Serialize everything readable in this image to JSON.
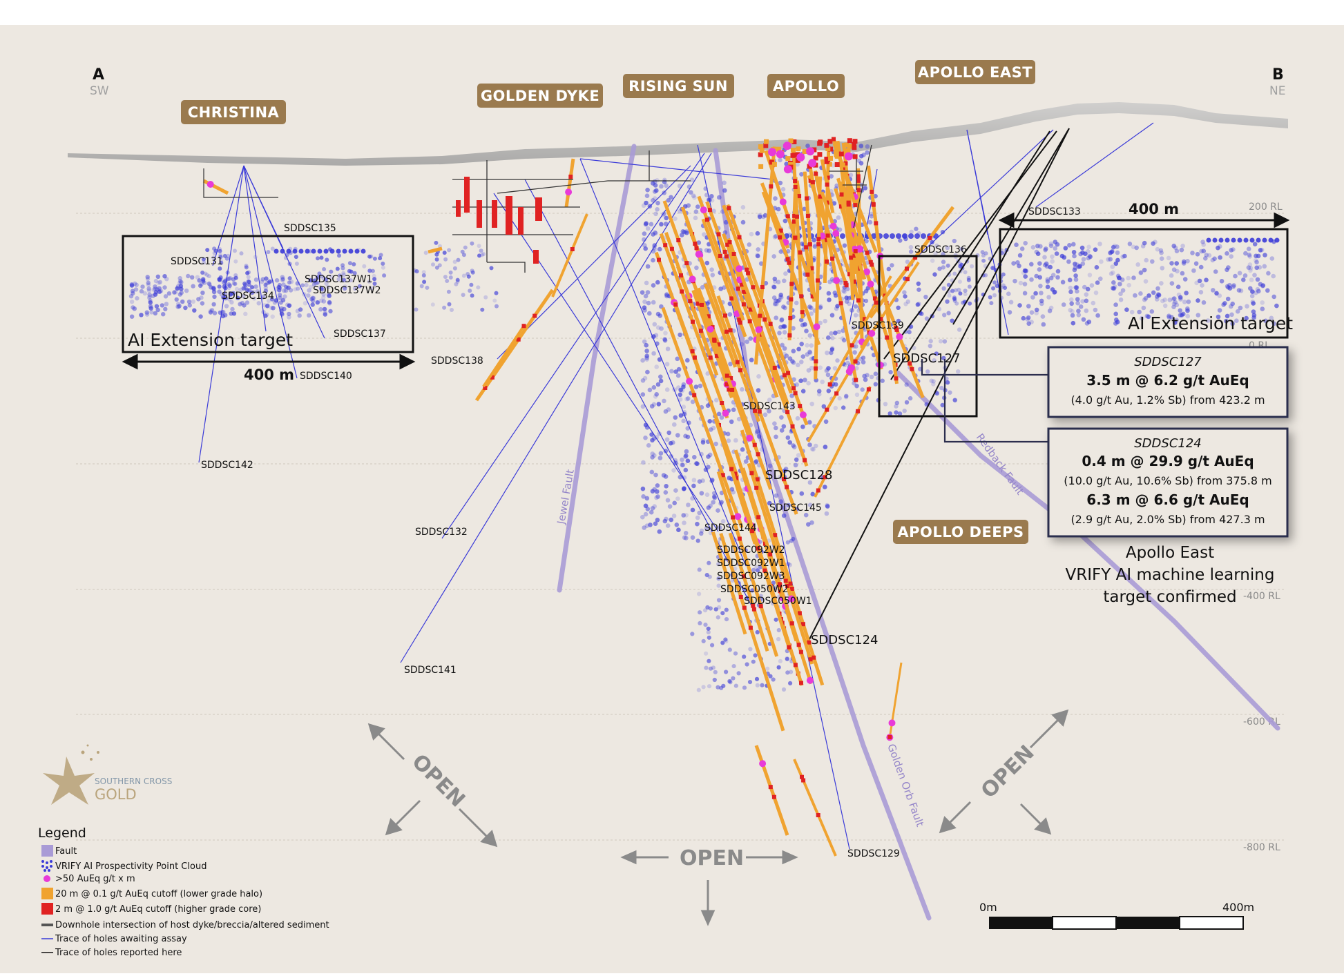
{
  "section_ends": {
    "left": {
      "letter": "A",
      "dir": "SW"
    },
    "right": {
      "letter": "B",
      "dir": "NE"
    }
  },
  "areas": {
    "christina": "CHRISTINA",
    "golden_dyke": "GOLDEN DYKE",
    "rising_sun": "RISING SUN",
    "apollo": "APOLLO",
    "apollo_east": "APOLLO EAST",
    "apollo_deeps": "APOLLO DEEPS"
  },
  "rl_labels": {
    "rl200": "200 RL",
    "rl0": "0 RL",
    "rl_400": "-400 RL",
    "rl_600": "-600 RL",
    "rl_800": "-800 RL"
  },
  "targets": {
    "left_label": "AI Extension target",
    "left_width": "400 m",
    "right_label": "AI Extension target",
    "right_width": "400 m"
  },
  "holes": {
    "sddsc131": "SDDSC131",
    "sddsc135": "SDDSC135",
    "sddsc134": "SDDSC134",
    "sddsc137w1": "SDDSC137W1",
    "sddsc137w2": "SDDSC137W2",
    "sddsc137": "SDDSC137",
    "sddsc140": "SDDSC140",
    "sddsc142": "SDDSC142",
    "sddsc138": "SDDSC138",
    "sddsc132": "SDDSC132",
    "sddsc141": "SDDSC141",
    "sddsc143": "SDDSC143",
    "sddsc128": "SDDSC128",
    "sddsc145": "SDDSC145",
    "sddsc144": "SDDSC144",
    "sddsc092w2": "SDDSC092W2",
    "sddsc092w1": "SDDSC092W1",
    "sddsc092w3": "SDDSC092W3",
    "sddsc050w2": "SDDSC050W2",
    "sddsc050w1": "SDDSC050W1",
    "sddsc124": "SDDSC124",
    "sddsc129": "SDDSC129",
    "sddsc133": "SDDSC133",
    "sddsc136": "SDDSC136",
    "sddsc139": "SDDSC139",
    "sddsc127": "SDDSC127"
  },
  "faults": {
    "jewel": "Jewel Fault",
    "redback": "Redback Fault",
    "golden_orb": "Golden Orb Fault"
  },
  "callouts": {
    "c127": {
      "hole": "SDDSC127",
      "line1": "3.5 m @ 6.2 g/t AuEq",
      "line2": "(4.0 g/t Au, 1.2% Sb) from 423.2 m"
    },
    "c124": {
      "hole": "SDDSC124",
      "line1": "0.4 m @ 29.9 g/t AuEq",
      "line2": "(10.0 g/t Au, 10.6% Sb) from 375.8 m",
      "line3": "6.3 m @ 6.6 g/t AuEq",
      "line4": "(2.9 g/t Au, 2.0% Sb) from 427.3 m"
    }
  },
  "confirm_note": {
    "line1": "Apollo East",
    "line2": "VRIFY AI machine learning",
    "line3": "target confirmed"
  },
  "open_label": "OPEN",
  "logo": {
    "line1": "SOUTHERN CROSS",
    "line2": "GOLD"
  },
  "legend": {
    "title": "Legend",
    "items": [
      "Fault",
      "VRIFY AI Prospectivity Point Cloud",
      ">50 AuEq g/t x m",
      "20 m @ 0.1 g/t AuEq cutoff (lower grade halo)",
      "2 m @ 1.0 g/t AuEq cutoff (higher grade core)",
      "Downhole intersection of host dyke/breccia/altered sediment",
      "Trace of holes awaiting assay",
      "Trace of holes reported here"
    ]
  },
  "scale": {
    "start": "0m",
    "end": "400m"
  },
  "colors": {
    "background": "#ede8e1",
    "tag": "#9a7a4e",
    "fault": "#a99bd6",
    "cloud": "#3a3ad8",
    "halo": "#f0a330",
    "core": "#e02222",
    "hot": "#e83ad8",
    "box": "#2c2e4e"
  }
}
